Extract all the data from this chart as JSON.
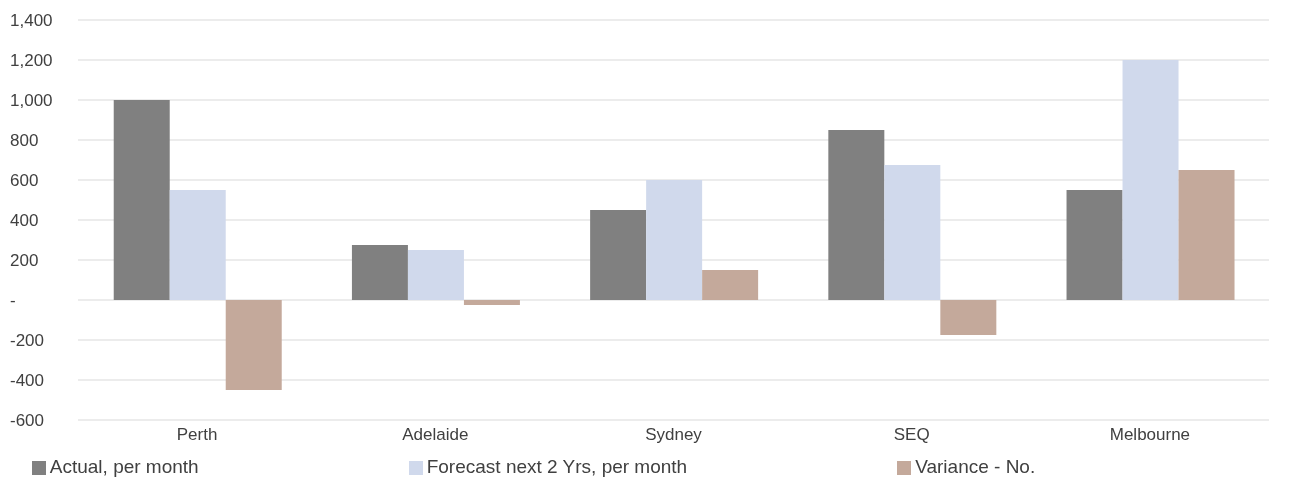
{
  "chart_data": {
    "type": "bar",
    "categories": [
      "Perth",
      "Adelaide",
      "Sydney",
      "SEQ",
      "Melbourne"
    ],
    "series": [
      {
        "name": "Actual, per month",
        "color": "#808080",
        "values": [
          1000,
          275,
          450,
          850,
          550
        ]
      },
      {
        "name": "Forecast next 2 Yrs, per month",
        "color": "#d0d9ec",
        "values": [
          550,
          250,
          600,
          675,
          1200
        ]
      },
      {
        "name": "Variance - No.",
        "color": "#c4a99b",
        "values": [
          -450,
          -25,
          150,
          -175,
          650
        ]
      }
    ],
    "ylim": [
      -600,
      1400
    ],
    "yticks": [
      -600,
      -400,
      -200,
      {
        "value": 0,
        "label": "-"
      },
      200,
      400,
      600,
      800,
      {
        "value": 1000,
        "label": "1,000"
      },
      {
        "value": 1200,
        "label": "1,200"
      },
      {
        "value": 1400,
        "label": "1,400"
      }
    ],
    "grid": "y",
    "legend": "bottom"
  }
}
